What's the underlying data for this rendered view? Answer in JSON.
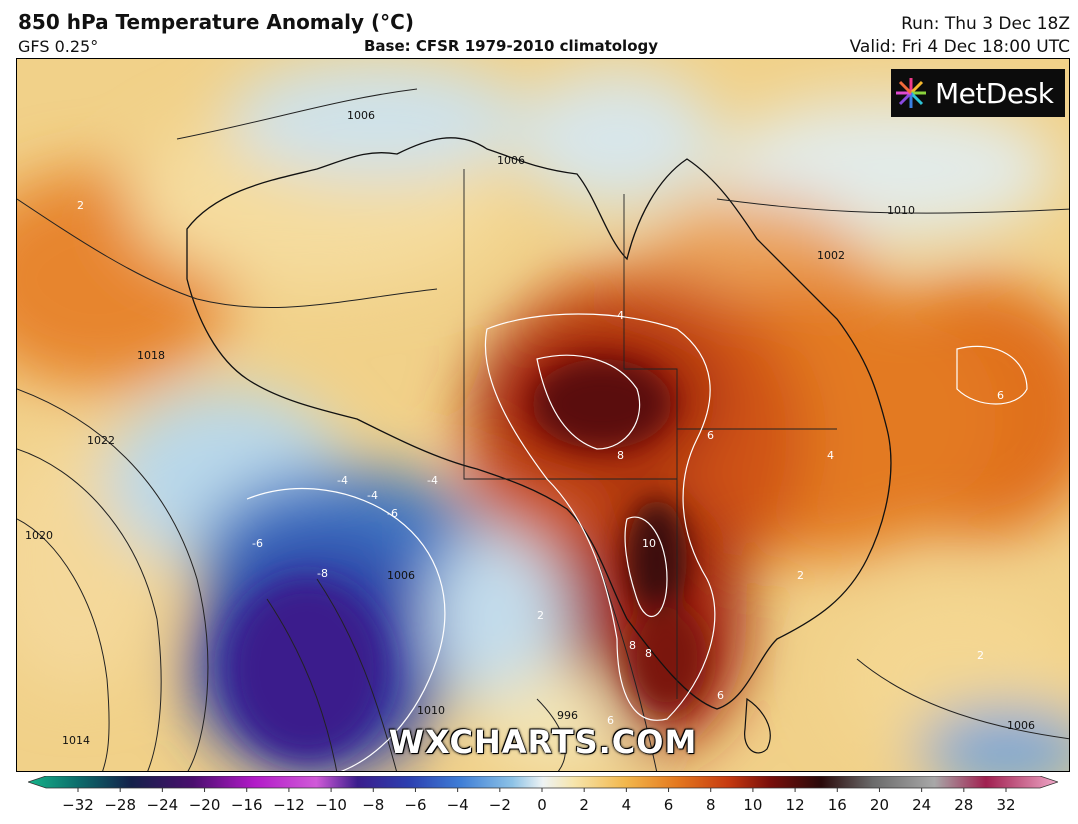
{
  "header": {
    "title": "850 hPa Temperature Anomaly (°C)",
    "model": "GFS 0.25°",
    "base": "Base: CFSR 1979-2010 climatology",
    "run": "Run: Thu 3 Dec 18Z",
    "valid": "Valid: Fri 4 Dec 18:00 UTC"
  },
  "logo": {
    "text": "MetDesk",
    "icon": "flower-logo-icon"
  },
  "watermark": "WXCHARTS.COM",
  "legend": {
    "ticks": [
      "−32",
      "−28",
      "−24",
      "−20",
      "−16",
      "−12",
      "−10",
      "−8",
      "−6",
      "−4",
      "−2",
      "0",
      "2",
      "4",
      "6",
      "8",
      "10",
      "12",
      "16",
      "20",
      "24",
      "28",
      "32"
    ]
  },
  "map_labels": {
    "isobars": [
      "1006",
      "1006",
      "1010",
      "1018",
      "1022",
      "1020",
      "1014",
      "1006",
      "1006",
      "1002",
      "1010",
      "996"
    ],
    "anomaly": [
      "-4",
      "-4",
      "-4",
      "-6",
      "-6",
      "-8",
      "8",
      "8",
      "8",
      "10",
      "6",
      "6",
      "6",
      "6",
      "4",
      "4",
      "2",
      "2",
      "2",
      "2"
    ]
  }
}
